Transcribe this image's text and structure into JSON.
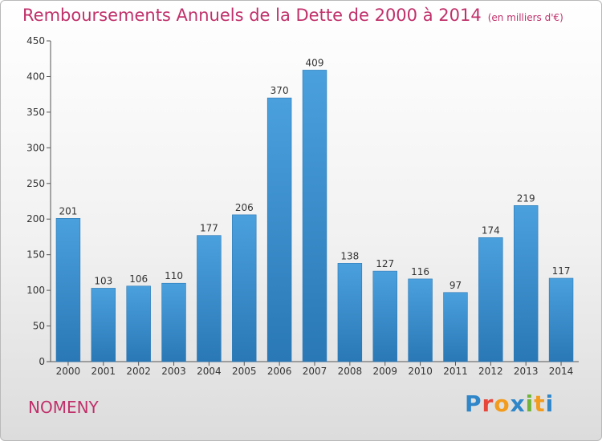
{
  "header": {
    "title": "Remboursements Annuels de la Dette de 2000 à 2014",
    "subtitle": "(en milliers d'€)"
  },
  "footer": {
    "commune": "NOMENY",
    "logo_letters": [
      "P",
      "r",
      "o",
      "x",
      "i",
      "t",
      "i"
    ],
    "logo_colors": [
      "#2f86c8",
      "#e7463b",
      "#f29b1d",
      "#2f86c8",
      "#71b43a",
      "#f29b1d",
      "#2f86c8"
    ]
  },
  "chart_data": {
    "type": "bar",
    "categories": [
      "2000",
      "2001",
      "2002",
      "2003",
      "2004",
      "2005",
      "2006",
      "2007",
      "2008",
      "2009",
      "2010",
      "2011",
      "2012",
      "2013",
      "2014"
    ],
    "values": [
      201,
      103,
      106,
      110,
      177,
      206,
      370,
      409,
      138,
      127,
      116,
      97,
      174,
      219,
      117
    ],
    "title": "Remboursements Annuels de la Dette de 2000 à 2014",
    "subtitle": "(en milliers d'€)",
    "ylim": [
      0,
      450
    ],
    "yticks": [
      0,
      50,
      100,
      150,
      200,
      250,
      300,
      350,
      400,
      450
    ],
    "grid": false,
    "bar_color": "#4aa0dd",
    "bar_color_dark": "#2a78b6",
    "data_labels": true
  }
}
